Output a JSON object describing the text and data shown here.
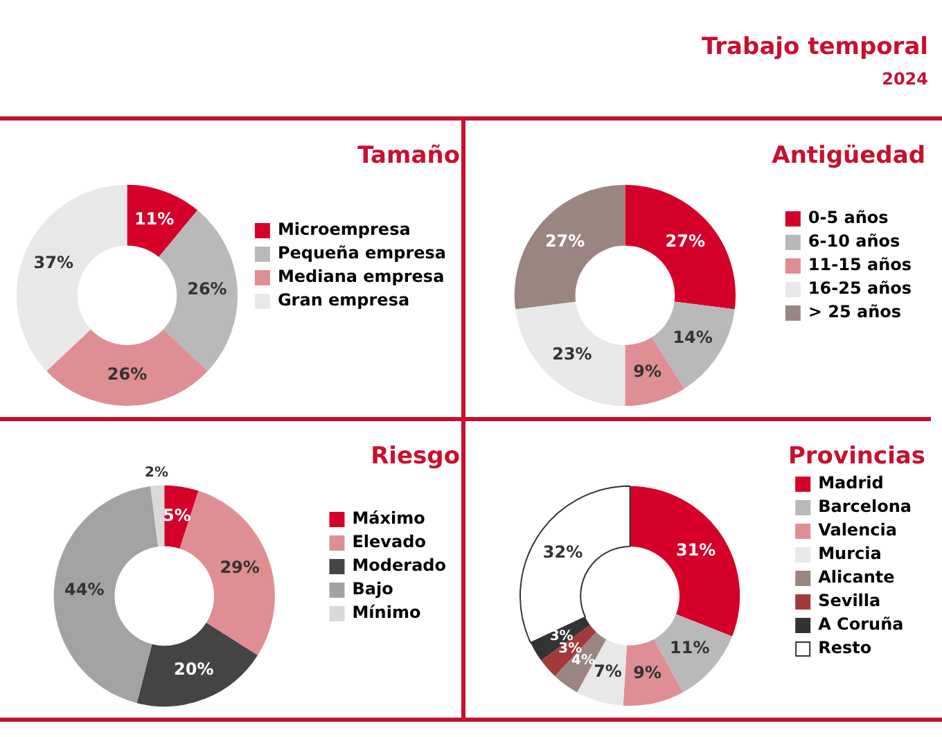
{
  "chart_data": [
    {
      "type": "other",
      "title": "Trabajo temporal",
      "subtitle": "2024"
    },
    {
      "type": "donut",
      "title": "Tamaño",
      "legend": "right",
      "categories": [
        "Microempresa",
        "Pequeña empresa",
        "Mediana empresa",
        "Gran empresa"
      ],
      "values": [
        11,
        26,
        26,
        37
      ],
      "value_labels": [
        "11%",
        "26%",
        "26%",
        "37%"
      ],
      "colors": [
        "#d5002a",
        "#b9b9b9",
        "#df8e94",
        "#e8e8e8"
      ]
    },
    {
      "type": "donut",
      "title": "Antigüedad",
      "legend": "right",
      "categories": [
        "0-5 años",
        "6-10 años",
        "11-15 años",
        "16-25 años",
        "> 25 años"
      ],
      "values": [
        27,
        14,
        9,
        23,
        27
      ],
      "value_labels": [
        "27%",
        "14%",
        "9%",
        "23%",
        "27%"
      ],
      "colors": [
        "#d5002a",
        "#b9b9b9",
        "#df8e94",
        "#e8e8e8",
        "#9b8580"
      ]
    },
    {
      "type": "donut",
      "title": "Riesgo",
      "legend": "right",
      "categories": [
        "Máximo",
        "Elevado",
        "Moderado",
        "Bajo",
        "Mínimo"
      ],
      "values": [
        5,
        29,
        20,
        44,
        2
      ],
      "value_labels": [
        "5%",
        "29%",
        "20%",
        "44%",
        "2%"
      ],
      "colors": [
        "#d5002a",
        "#df8e94",
        "#444444",
        "#a3a3a3",
        "#d9d9d9"
      ]
    },
    {
      "type": "donut",
      "title": "Provincias",
      "legend": "right",
      "categories": [
        "Madrid",
        "Barcelona",
        "Valencia",
        "Murcia",
        "Alicante",
        "Sevilla",
        "A Coruña",
        "Resto"
      ],
      "values": [
        31,
        11,
        9,
        7,
        4,
        3,
        3,
        32
      ],
      "value_labels": [
        "31%",
        "11%",
        "9%",
        "7%",
        "4%",
        "3%",
        "3%",
        "32%"
      ],
      "colors": [
        "#d5002a",
        "#b9b9b9",
        "#df8e94",
        "#e8e8e8",
        "#9b8580",
        "#a33a3a",
        "#333333",
        "#ffffff"
      ]
    }
  ]
}
